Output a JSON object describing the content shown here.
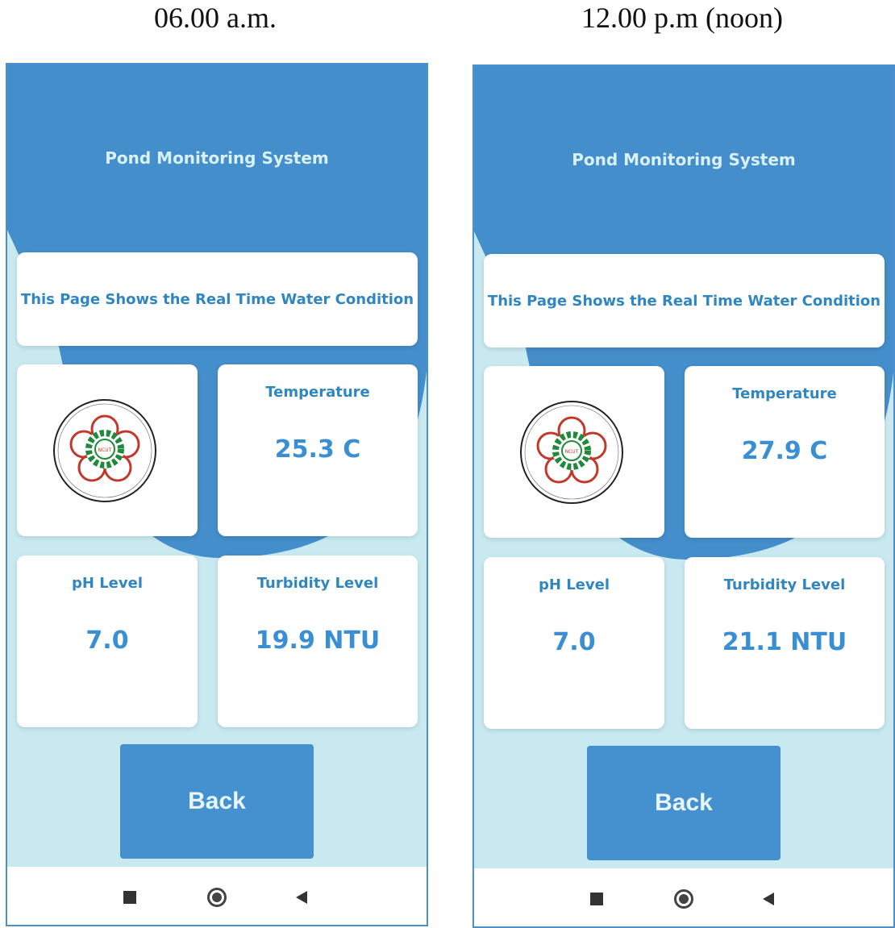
{
  "screens": [
    {
      "caption": "06.00 a.m.",
      "app_title": "Pond Monitoring System",
      "subtitle": "This Page Shows the Real Time Water Condition",
      "temperature": {
        "label": "Temperature",
        "value": "25.3 C"
      },
      "ph": {
        "label": "pH Level",
        "value": "7.0"
      },
      "turbidity": {
        "label": "Turbidity Level",
        "value": "19.9 NTU"
      },
      "back_label": "Back"
    },
    {
      "caption": "12.00 p.m (noon)",
      "app_title": "Pond Monitoring System",
      "subtitle": "This Page Shows the Real Time Water Condition",
      "temperature": {
        "label": "Temperature",
        "value": "27.9 C"
      },
      "ph": {
        "label": "pH Level",
        "value": "7.0"
      },
      "turbidity": {
        "label": "Turbidity Level",
        "value": "21.1 NTU"
      },
      "back_label": "Back"
    }
  ],
  "logo": {
    "name": "NCUT university seal",
    "text": "國立勤益科技大學 National Chin-Yi University of Technology NCUT"
  },
  "nav_icons": [
    "square-recents-icon",
    "circle-home-icon",
    "triangle-back-icon"
  ],
  "colors": {
    "primary": "#448ecb",
    "background": "#c8e9f0",
    "text": "#2f86c0"
  }
}
